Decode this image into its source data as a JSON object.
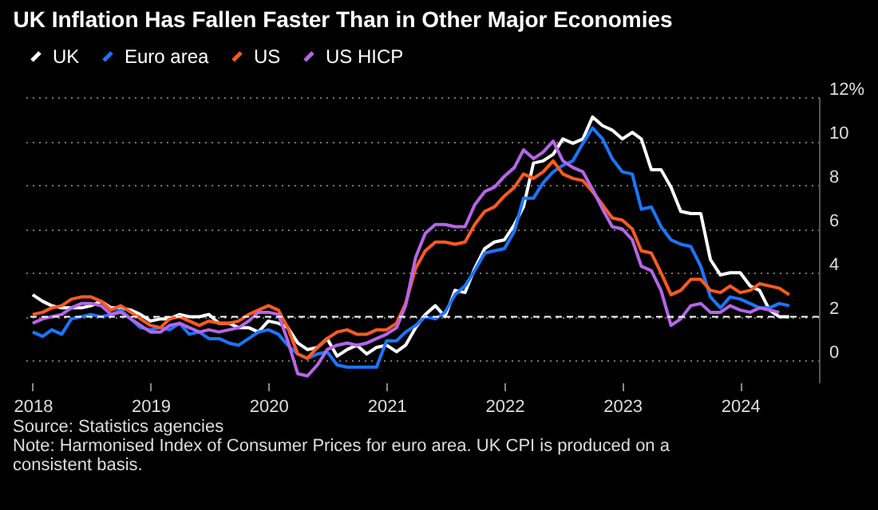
{
  "chart_data": {
    "type": "line",
    "title": "UK Inflation Has Fallen Faster Than in Other Major Economies",
    "x": [
      "2018-01",
      "2018-02",
      "2018-03",
      "2018-04",
      "2018-05",
      "2018-06",
      "2018-07",
      "2018-08",
      "2018-09",
      "2018-10",
      "2018-11",
      "2018-12",
      "2019-01",
      "2019-02",
      "2019-03",
      "2019-04",
      "2019-05",
      "2019-06",
      "2019-07",
      "2019-08",
      "2019-09",
      "2019-10",
      "2019-11",
      "2019-12",
      "2020-01",
      "2020-02",
      "2020-03",
      "2020-04",
      "2020-05",
      "2020-06",
      "2020-07",
      "2020-08",
      "2020-09",
      "2020-10",
      "2020-11",
      "2020-12",
      "2021-01",
      "2021-02",
      "2021-03",
      "2021-04",
      "2021-05",
      "2021-06",
      "2021-07",
      "2021-08",
      "2021-09",
      "2021-10",
      "2021-11",
      "2021-12",
      "2022-01",
      "2022-02",
      "2022-03",
      "2022-04",
      "2022-05",
      "2022-06",
      "2022-07",
      "2022-08",
      "2022-09",
      "2022-10",
      "2022-11",
      "2022-12",
      "2023-01",
      "2023-02",
      "2023-03",
      "2023-04",
      "2023-05",
      "2023-06",
      "2023-07",
      "2023-08",
      "2023-09",
      "2023-10",
      "2023-11",
      "2023-12",
      "2024-01",
      "2024-02",
      "2024-03",
      "2024-04",
      "2024-05",
      "2024-06"
    ],
    "series": [
      {
        "name": "UK",
        "color": "#ffffff",
        "values": [
          3.0,
          2.7,
          2.5,
          2.4,
          2.4,
          2.4,
          2.5,
          2.7,
          2.4,
          2.4,
          2.3,
          2.1,
          1.8,
          1.9,
          1.9,
          2.1,
          2.0,
          2.0,
          2.1,
          1.7,
          1.7,
          1.5,
          1.5,
          1.3,
          1.8,
          1.7,
          1.5,
          0.8,
          0.5,
          0.6,
          1.0,
          0.2,
          0.5,
          0.7,
          0.3,
          0.6,
          0.7,
          0.4,
          0.7,
          1.5,
          2.1,
          2.5,
          2.0,
          3.2,
          3.1,
          4.2,
          5.1,
          5.4,
          5.5,
          6.2,
          7.0,
          9.0,
          9.1,
          9.4,
          10.1,
          9.9,
          10.1,
          11.1,
          10.7,
          10.5,
          10.1,
          10.4,
          10.1,
          8.7,
          8.7,
          7.9,
          6.8,
          6.7,
          6.7,
          4.6,
          3.9,
          4.0,
          4.0,
          3.4,
          3.2,
          2.3,
          2.0,
          2.0
        ]
      },
      {
        "name": "Euro area",
        "color": "#1a76ff",
        "values": [
          1.3,
          1.1,
          1.4,
          1.2,
          1.9,
          2.0,
          2.1,
          2.0,
          2.1,
          2.3,
          1.9,
          1.5,
          1.4,
          1.5,
          1.4,
          1.7,
          1.2,
          1.3,
          1.0,
          1.0,
          0.8,
          0.7,
          1.0,
          1.3,
          1.4,
          1.2,
          0.7,
          0.3,
          0.1,
          0.3,
          0.4,
          -0.2,
          -0.3,
          -0.3,
          -0.3,
          -0.3,
          0.9,
          0.9,
          1.3,
          1.6,
          2.0,
          1.9,
          2.2,
          3.0,
          3.4,
          4.1,
          4.9,
          5.0,
          5.1,
          5.9,
          7.4,
          7.4,
          8.1,
          8.6,
          8.9,
          9.1,
          9.9,
          10.6,
          10.1,
          9.2,
          8.6,
          8.5,
          6.9,
          7.0,
          6.1,
          5.5,
          5.3,
          5.2,
          4.3,
          2.9,
          2.4,
          2.9,
          2.8,
          2.6,
          2.4,
          2.4,
          2.6,
          2.5
        ]
      },
      {
        "name": "US",
        "color": "#ff5a1f",
        "values": [
          2.1,
          2.2,
          2.4,
          2.5,
          2.8,
          2.9,
          2.9,
          2.7,
          2.3,
          2.5,
          2.2,
          1.9,
          1.6,
          1.5,
          1.9,
          2.0,
          1.8,
          1.6,
          1.8,
          1.7,
          1.7,
          1.8,
          2.1,
          2.3,
          2.5,
          2.3,
          1.5,
          0.3,
          0.1,
          0.6,
          1.0,
          1.3,
          1.4,
          1.2,
          1.2,
          1.4,
          1.4,
          1.7,
          2.6,
          4.2,
          5.0,
          5.4,
          5.4,
          5.3,
          5.4,
          6.2,
          6.8,
          7.0,
          7.5,
          7.9,
          8.5,
          8.3,
          8.6,
          9.1,
          8.5,
          8.3,
          8.2,
          7.7,
          7.1,
          6.5,
          6.4,
          6.0,
          5.0,
          4.9,
          4.0,
          3.0,
          3.2,
          3.7,
          3.7,
          3.2,
          3.1,
          3.4,
          3.1,
          3.2,
          3.5,
          3.4,
          3.3,
          3.0
        ]
      },
      {
        "name": "US HICP",
        "color": "#b566e8",
        "values": [
          1.7,
          1.9,
          2.0,
          2.1,
          2.4,
          2.6,
          2.6,
          2.5,
          2.1,
          2.2,
          1.9,
          1.6,
          1.3,
          1.3,
          1.6,
          1.7,
          1.5,
          1.3,
          1.4,
          1.3,
          1.4,
          1.5,
          1.8,
          2.2,
          2.2,
          2.1,
          0.9,
          -0.6,
          -0.7,
          -0.2,
          0.5,
          0.7,
          0.8,
          0.7,
          0.8,
          1.0,
          1.2,
          1.5,
          2.5,
          4.7,
          5.8,
          6.2,
          6.2,
          6.1,
          6.1,
          7.1,
          7.7,
          7.9,
          8.4,
          8.8,
          9.6,
          9.2,
          9.5,
          10.0,
          9.1,
          8.8,
          8.6,
          7.8,
          6.9,
          6.1,
          6.0,
          5.5,
          4.3,
          4.1,
          3.2,
          1.6,
          1.9,
          2.5,
          2.6,
          2.2,
          2.2,
          2.5,
          2.3,
          2.2,
          2.4,
          2.3,
          2.2,
          null
        ]
      }
    ],
    "xlim": [
      "2017-12-10",
      "2024-09-01"
    ],
    "xticks": [
      "2018",
      "2019",
      "2020",
      "2021",
      "2022",
      "2023",
      "2024"
    ],
    "ylim": [
      -1,
      12
    ],
    "yticks": [
      0,
      2,
      4,
      6,
      8,
      10,
      {
        "value": 12,
        "label": "12%"
      }
    ],
    "grid": "y",
    "legend": "top left",
    "line_style": "solid",
    "marker": "none",
    "ref_lines": [
      {
        "axis": "y",
        "value": 2,
        "color": "#ffffff",
        "line_style": "dashed"
      }
    ],
    "annotations": [
      "Source: Statistics agencies",
      "Note: Harmonised Index of Consumer Prices for euro area. UK CPI is produced on a consistent basis."
    ]
  }
}
